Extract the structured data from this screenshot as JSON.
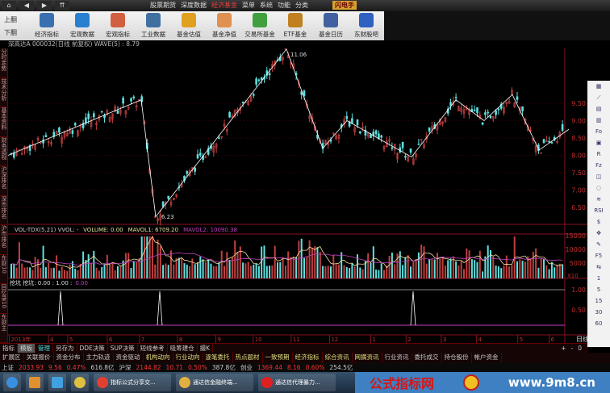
{
  "menubar": {
    "nav": [
      "⌂",
      "◀",
      "▶",
      "⇈"
    ],
    "menus": [
      "股票期货",
      "深度数据",
      "经济基金",
      "菜单",
      "系统",
      "功能",
      "分类"
    ],
    "active": 2,
    "brand": "闪电手"
  },
  "toolbar": {
    "page_up": "上翻",
    "page_down": "下翻",
    "buttons": [
      {
        "label": "经济指标",
        "color": "#3a70b0"
      },
      {
        "label": "宏观数据",
        "color": "#2a80d0"
      },
      {
        "label": "宏观指标",
        "color": "#d06040"
      },
      {
        "label": "工业数据",
        "color": "#4070a0"
      },
      {
        "label": "基金估值",
        "color": "#e0a020"
      },
      {
        "label": "基金净值",
        "color": "#e09050"
      },
      {
        "label": "交易所基金",
        "color": "#40a040"
      },
      {
        "label": "ETF基金",
        "color": "#c08020"
      },
      {
        "label": "基金日历",
        "color": "#4060a0"
      },
      {
        "label": "东财股吧",
        "color": "#3060c0"
      }
    ]
  },
  "title": "深高达A 000032(日线 前复权) WAVE(5) : 8.79",
  "left_tabs": [
    "分时走势",
    "技术分析",
    "基本资料",
    "财务透视",
    "沪深排名",
    "深市排名",
    "沪市排名",
    "东财10",
    "回忆录10",
    "东财主"
  ],
  "price_axis": [
    "9.50",
    "9.00",
    "8.50",
    "8.00",
    "7.50",
    "7.00",
    "6.50"
  ],
  "price_labels": {
    "high": "11.06",
    "low": "6.23"
  },
  "volume": {
    "header": "VOL-TDX(5,21) VVOL: -",
    "volume": "VOLUME: 0.00",
    "mavol1": "MAVOL1: 6709.20",
    "mavol2": "MAVOL2: 10090.38",
    "axis": [
      "15000",
      "10000",
      "5000"
    ],
    "unit": "X10",
    "colors": {
      "up": "#c04040",
      "down": "#60e0e0",
      "ma1": "#f0e0a0",
      "ma2": "#c040c0"
    }
  },
  "indicator": {
    "header": "挖坑 挖坑: 0.00 : 1.00 :",
    "value": "0.00",
    "axis": [
      "1.00",
      "0.50"
    ],
    "spikes_at_months": [
      "4",
      "7",
      "2"
    ]
  },
  "date_axis": [
    "2013年",
    "4",
    "5",
    "6",
    "7",
    "8",
    "9",
    "10",
    "11",
    "12",
    "1",
    "2",
    "3",
    "4",
    "5",
    "6"
  ],
  "period": "日线",
  "right_strip": [
    "▦",
    "⟋",
    "▤",
    "▥",
    "Fo",
    "▣",
    "R",
    "Fz",
    "◫",
    "◌",
    "≋",
    "RSI",
    "$",
    "✥",
    "✎",
    "F5",
    "⇆",
    "1",
    "5",
    "15",
    "30",
    "60"
  ],
  "zoom_controls": [
    "+",
    "-",
    "0"
  ],
  "bottom_tabs": [
    "指标",
    "模板",
    "管理",
    "另存为",
    "DDE决策",
    "SUP决策",
    "短线参考",
    "吸筹建仓",
    "撮K"
  ],
  "func_tabs": [
    "扩展区",
    "关联报价",
    "资金分布",
    "主力轨迹",
    "资金驱动",
    "机构动向",
    "行业动向",
    "逐笔委托",
    "热点题材",
    "一致预期",
    "经济指标",
    "综合资讯",
    "网摘资讯",
    "行业资讯",
    "委托成交",
    "持仓股份",
    "帐户资金"
  ],
  "status": [
    {
      "name": "上证",
      "value": "2033.93",
      "chg": "9.56",
      "pct": "0.47%",
      "amt": "616.8亿"
    },
    {
      "name": "沪深",
      "value": "2144.82",
      "chg": "10.71",
      "pct": "0.50%",
      "amt": "387.8亿"
    },
    {
      "name": "创业",
      "value": "1369.44",
      "chg": "8.16",
      "pct": "0.60%",
      "amt": "254.5亿"
    }
  ],
  "taskbar": [
    {
      "label": "指标公式分享交...",
      "color": "#e04030"
    },
    {
      "label": "通达信金融终端...",
      "color": "#e0b040"
    },
    {
      "label": "通达信代理暴力...",
      "color": "#e02020"
    }
  ],
  "watermark": {
    "text": "公式指标网",
    "url": "www.9m8.cn"
  }
}
